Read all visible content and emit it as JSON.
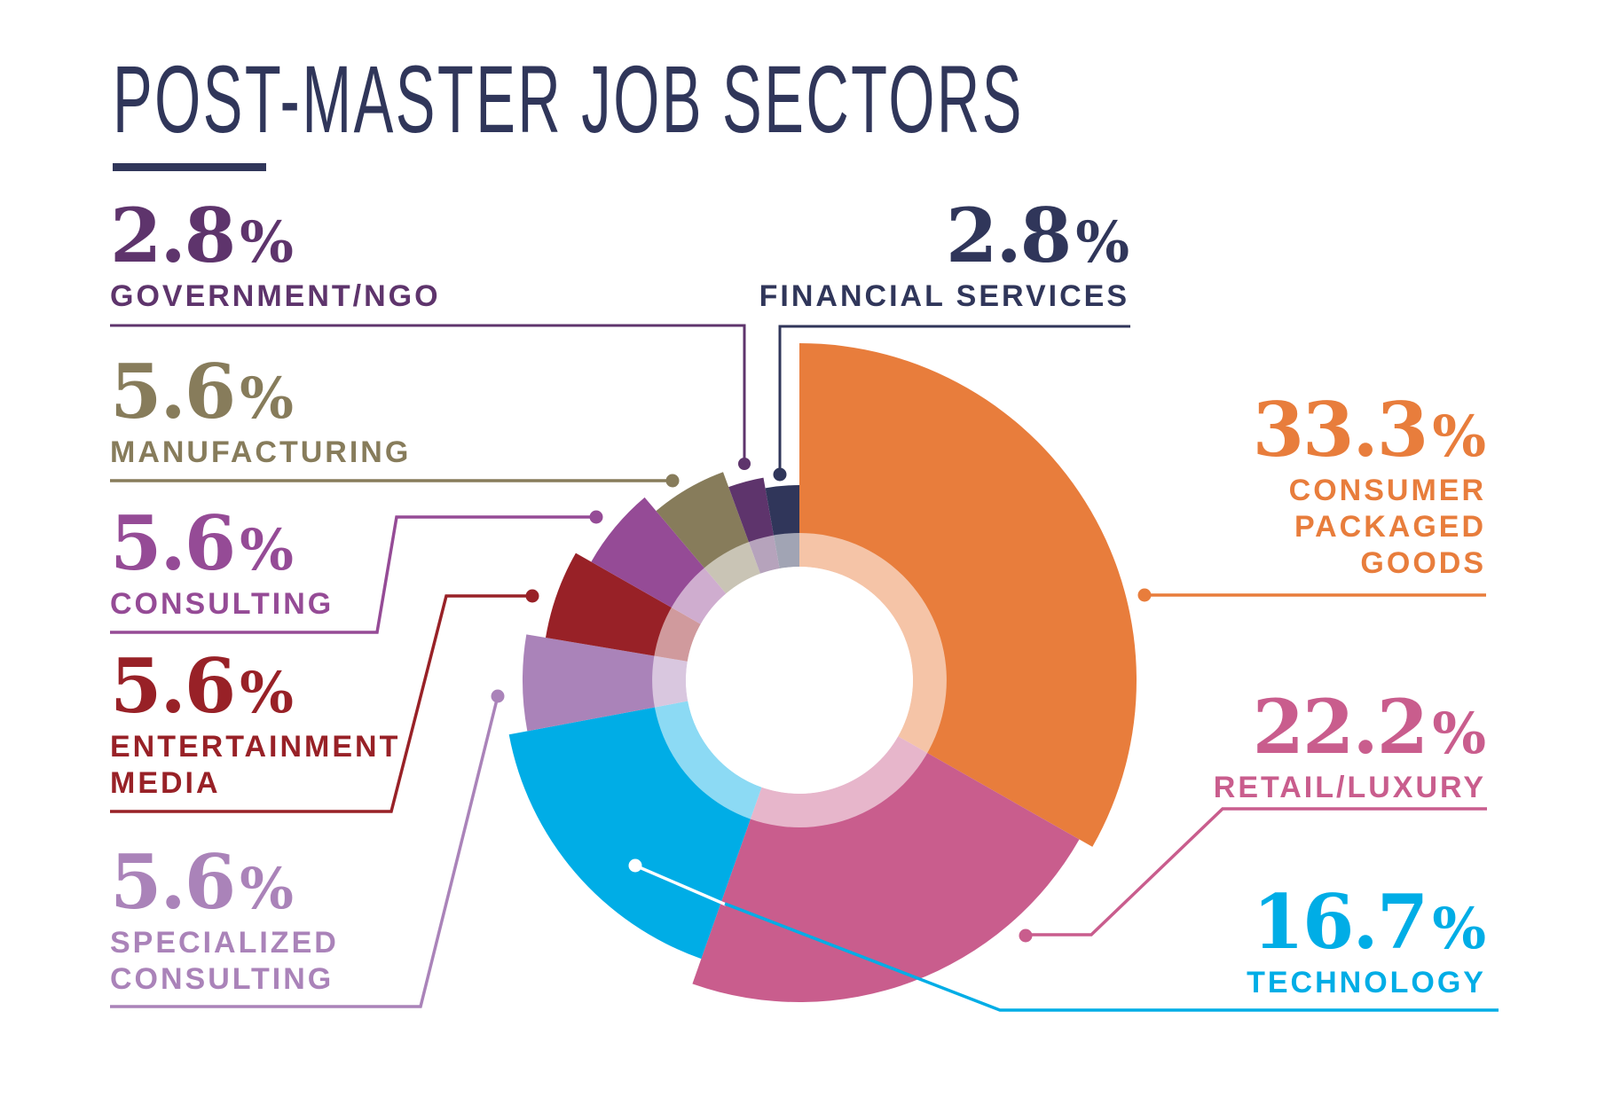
{
  "header": {
    "title": "POST-MASTER JOB SECTORS"
  },
  "chart_data": {
    "type": "pie",
    "variant": "radial donut with variable-radius wedges",
    "title": "POST-MASTER JOB SECTORS",
    "unit": "%",
    "categories": [
      "Consumer Packaged Goods",
      "Retail/Luxury",
      "Technology",
      "Specialized Consulting",
      "Entertainment Media",
      "Consulting",
      "Manufacturing",
      "Government/NGO",
      "Financial Services"
    ],
    "values": [
      33.3,
      22.2,
      16.7,
      5.6,
      5.6,
      5.6,
      5.6,
      2.8,
      2.8
    ],
    "colors": [
      "#e87d3c",
      "#c95d8d",
      "#00ade6",
      "#aa83b9",
      "#982127",
      "#954b96",
      "#877c5b",
      "#5e346c",
      "#30365a"
    ],
    "center": [
      901,
      767
    ],
    "inner_radius": 128,
    "ring_radius": 166,
    "outer_radii": [
      380,
      363,
      333,
      312,
      290,
      270,
      250,
      232,
      220
    ],
    "legend_position": "callout labels around chart",
    "grid": false
  },
  "labels": {
    "gov": {
      "value": "2.8",
      "percent": "%",
      "name_lines": [
        "GOVERNMENT/NGO"
      ],
      "color": "#5e346c"
    },
    "financial": {
      "value": "2.8",
      "percent": "%",
      "name_lines": [
        "FINANCIAL SERVICES"
      ],
      "color": "#30365a"
    },
    "manufacturing": {
      "value": "5.6",
      "percent": "%",
      "name_lines": [
        "MANUFACTURING"
      ],
      "color": "#877c5b"
    },
    "consumer": {
      "value": "33.3",
      "percent": "%",
      "name_lines": [
        "CONSUMER",
        "PACKAGED",
        "GOODS"
      ],
      "color": "#e87d3c"
    },
    "consulting": {
      "value": "5.6",
      "percent": "%",
      "name_lines": [
        "CONSULTING"
      ],
      "color": "#954b96"
    },
    "entertainment": {
      "value": "5.6",
      "percent": "%",
      "name_lines": [
        "ENTERTAINMENT",
        "MEDIA"
      ],
      "color": "#982127"
    },
    "retail": {
      "value": "22.2",
      "percent": "%",
      "name_lines": [
        "RETAIL/LUXURY"
      ],
      "color": "#c95d8d"
    },
    "specialized": {
      "value": "5.6",
      "percent": "%",
      "name_lines": [
        "SPECIALIZED",
        "CONSULTING"
      ],
      "color": "#aa83b9"
    },
    "technology": {
      "value": "16.7",
      "percent": "%",
      "name_lines": [
        "TECHNOLOGY"
      ],
      "color": "#00ade6"
    }
  },
  "colors": {
    "title": "#30365a"
  }
}
